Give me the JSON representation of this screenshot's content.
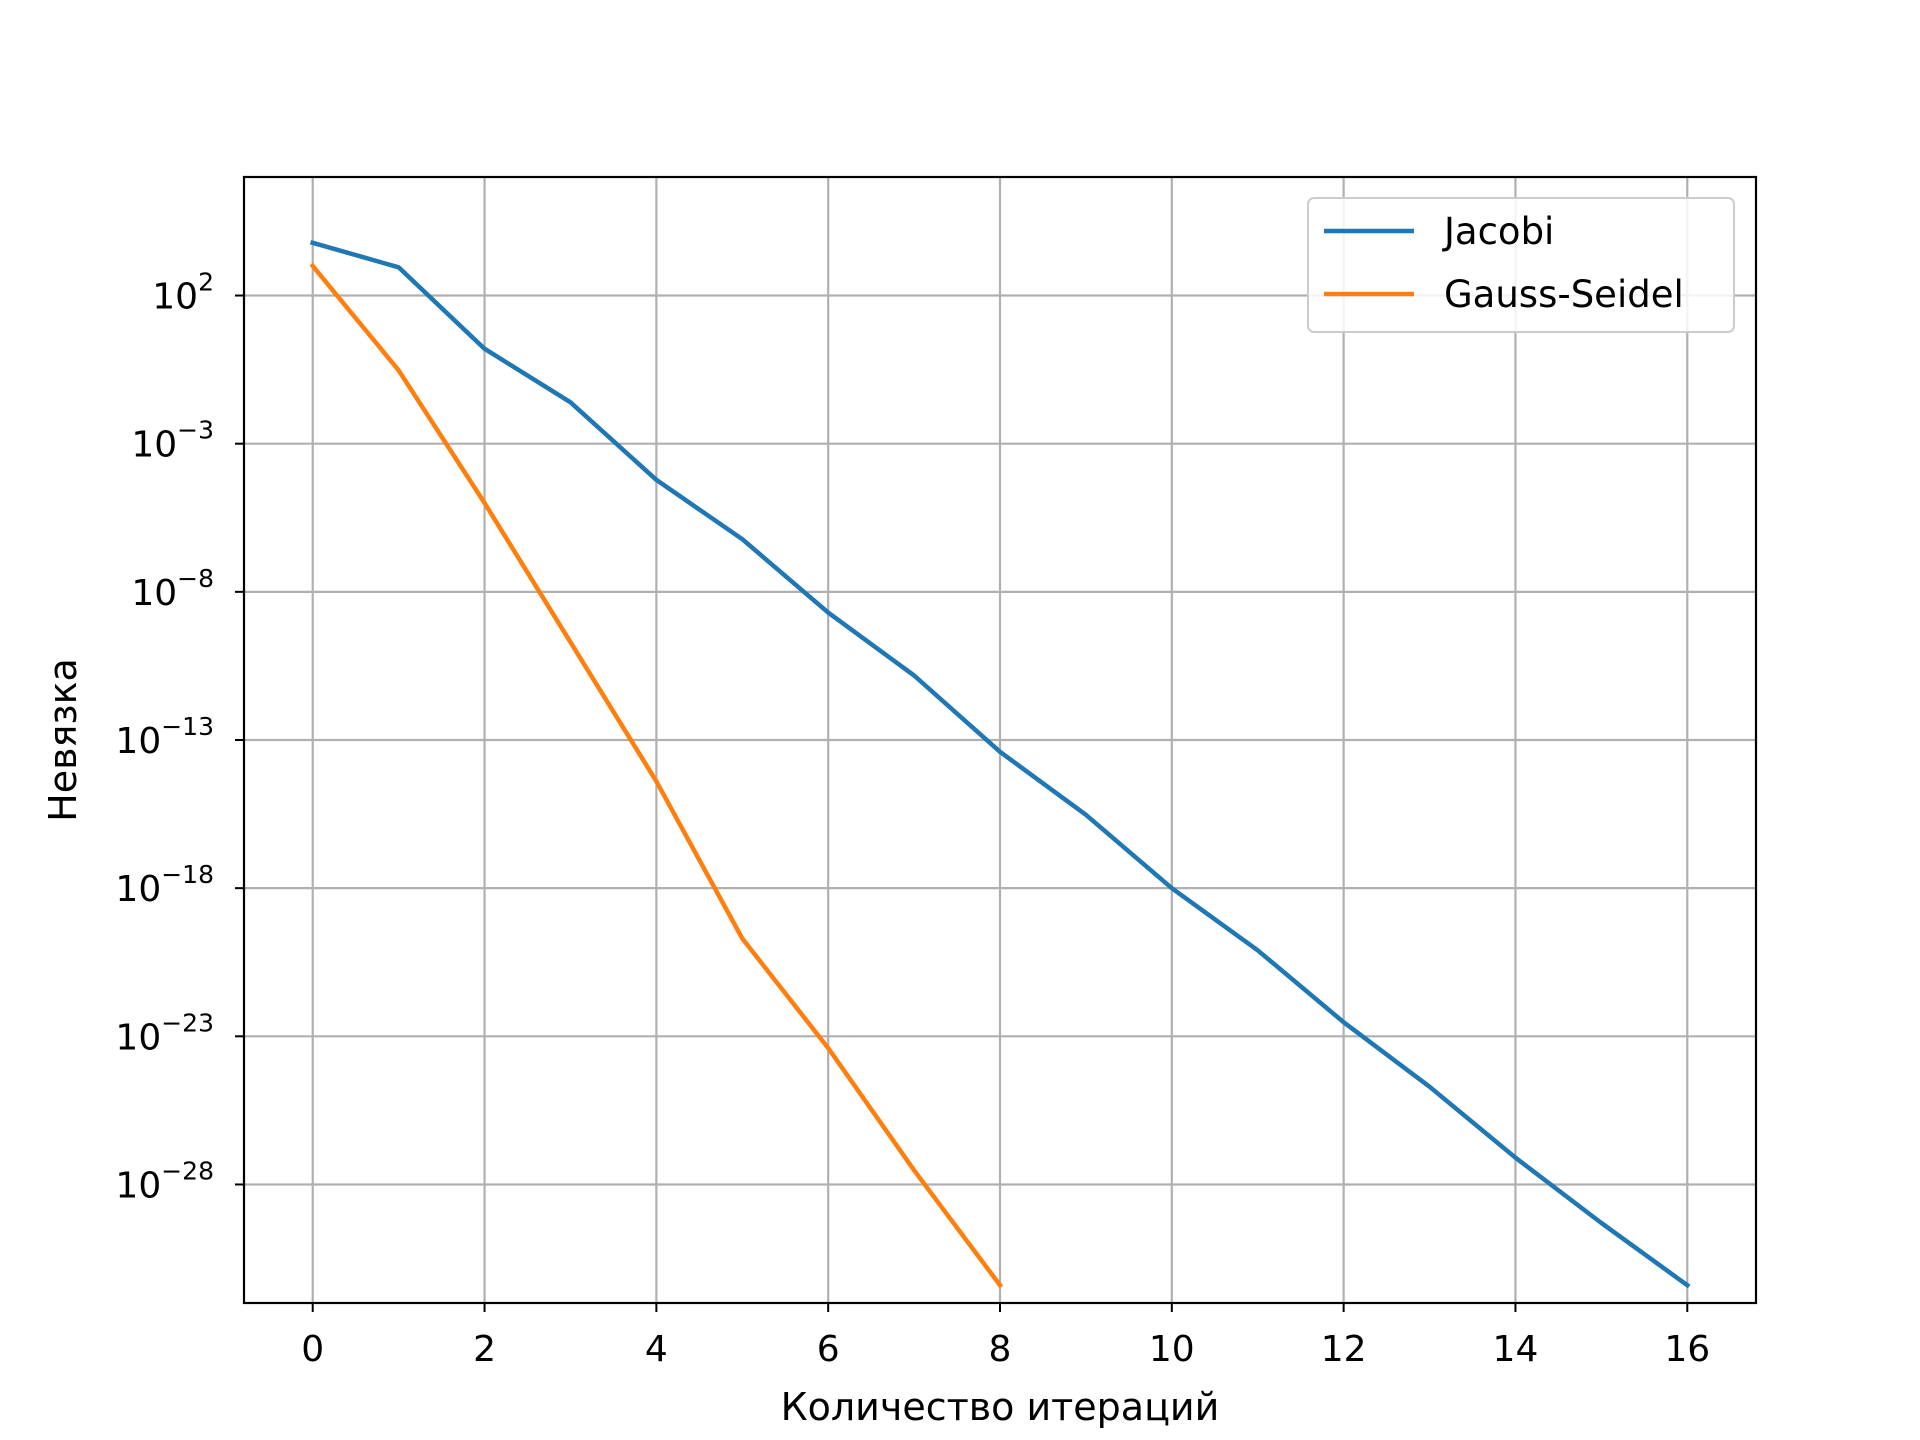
{
  "chart_data": {
    "type": "line",
    "title": "",
    "xlabel": "Количество итераций",
    "ylabel": "Невязка",
    "xlim": [
      -0.8,
      16.8
    ],
    "ylim": [
      1e-32,
      1000000.0
    ],
    "yscale": "log",
    "grid": true,
    "legend_position": "top-right",
    "x_ticks": [
      0,
      2,
      4,
      6,
      8,
      10,
      12,
      14,
      16
    ],
    "x_tick_labels": [
      "0",
      "2",
      "4",
      "6",
      "8",
      "10",
      "12",
      "14",
      "16"
    ],
    "y_ticks": [
      100.0,
      0.001,
      1e-08,
      1e-13,
      1e-18,
      1e-23,
      1e-28
    ],
    "y_tick_labels": [
      {
        "base": "10",
        "exp": "2"
      },
      {
        "base": "10",
        "exp": "−3"
      },
      {
        "base": "10",
        "exp": "−8"
      },
      {
        "base": "10",
        "exp": "−13"
      },
      {
        "base": "10",
        "exp": "−18"
      },
      {
        "base": "10",
        "exp": "−23"
      },
      {
        "base": "10",
        "exp": "−28"
      }
    ],
    "series": [
      {
        "name": "Jacobi",
        "color": "#1f77b4",
        "x": [
          0,
          1,
          2,
          3,
          4,
          5,
          6,
          7,
          8,
          9,
          10,
          11,
          12,
          13,
          14,
          15,
          16
        ],
        "y": [
          6000.0,
          900.0,
          1.6,
          0.025,
          6e-05,
          6e-07,
          2e-09,
          1.5e-11,
          4e-14,
          3e-16,
          1e-18,
          8e-21,
          3e-23,
          2e-25,
          8e-28,
          5e-30,
          4e-32
        ]
      },
      {
        "name": "Gauss-Seidel",
        "color": "#ff7f0e",
        "x": [
          0,
          1,
          2,
          3,
          4,
          5,
          6,
          7,
          8
        ],
        "y": [
          1000.0,
          0.3,
          1e-05,
          2e-10,
          4e-15,
          2e-20,
          4e-24,
          3e-28,
          4e-32
        ]
      }
    ]
  }
}
